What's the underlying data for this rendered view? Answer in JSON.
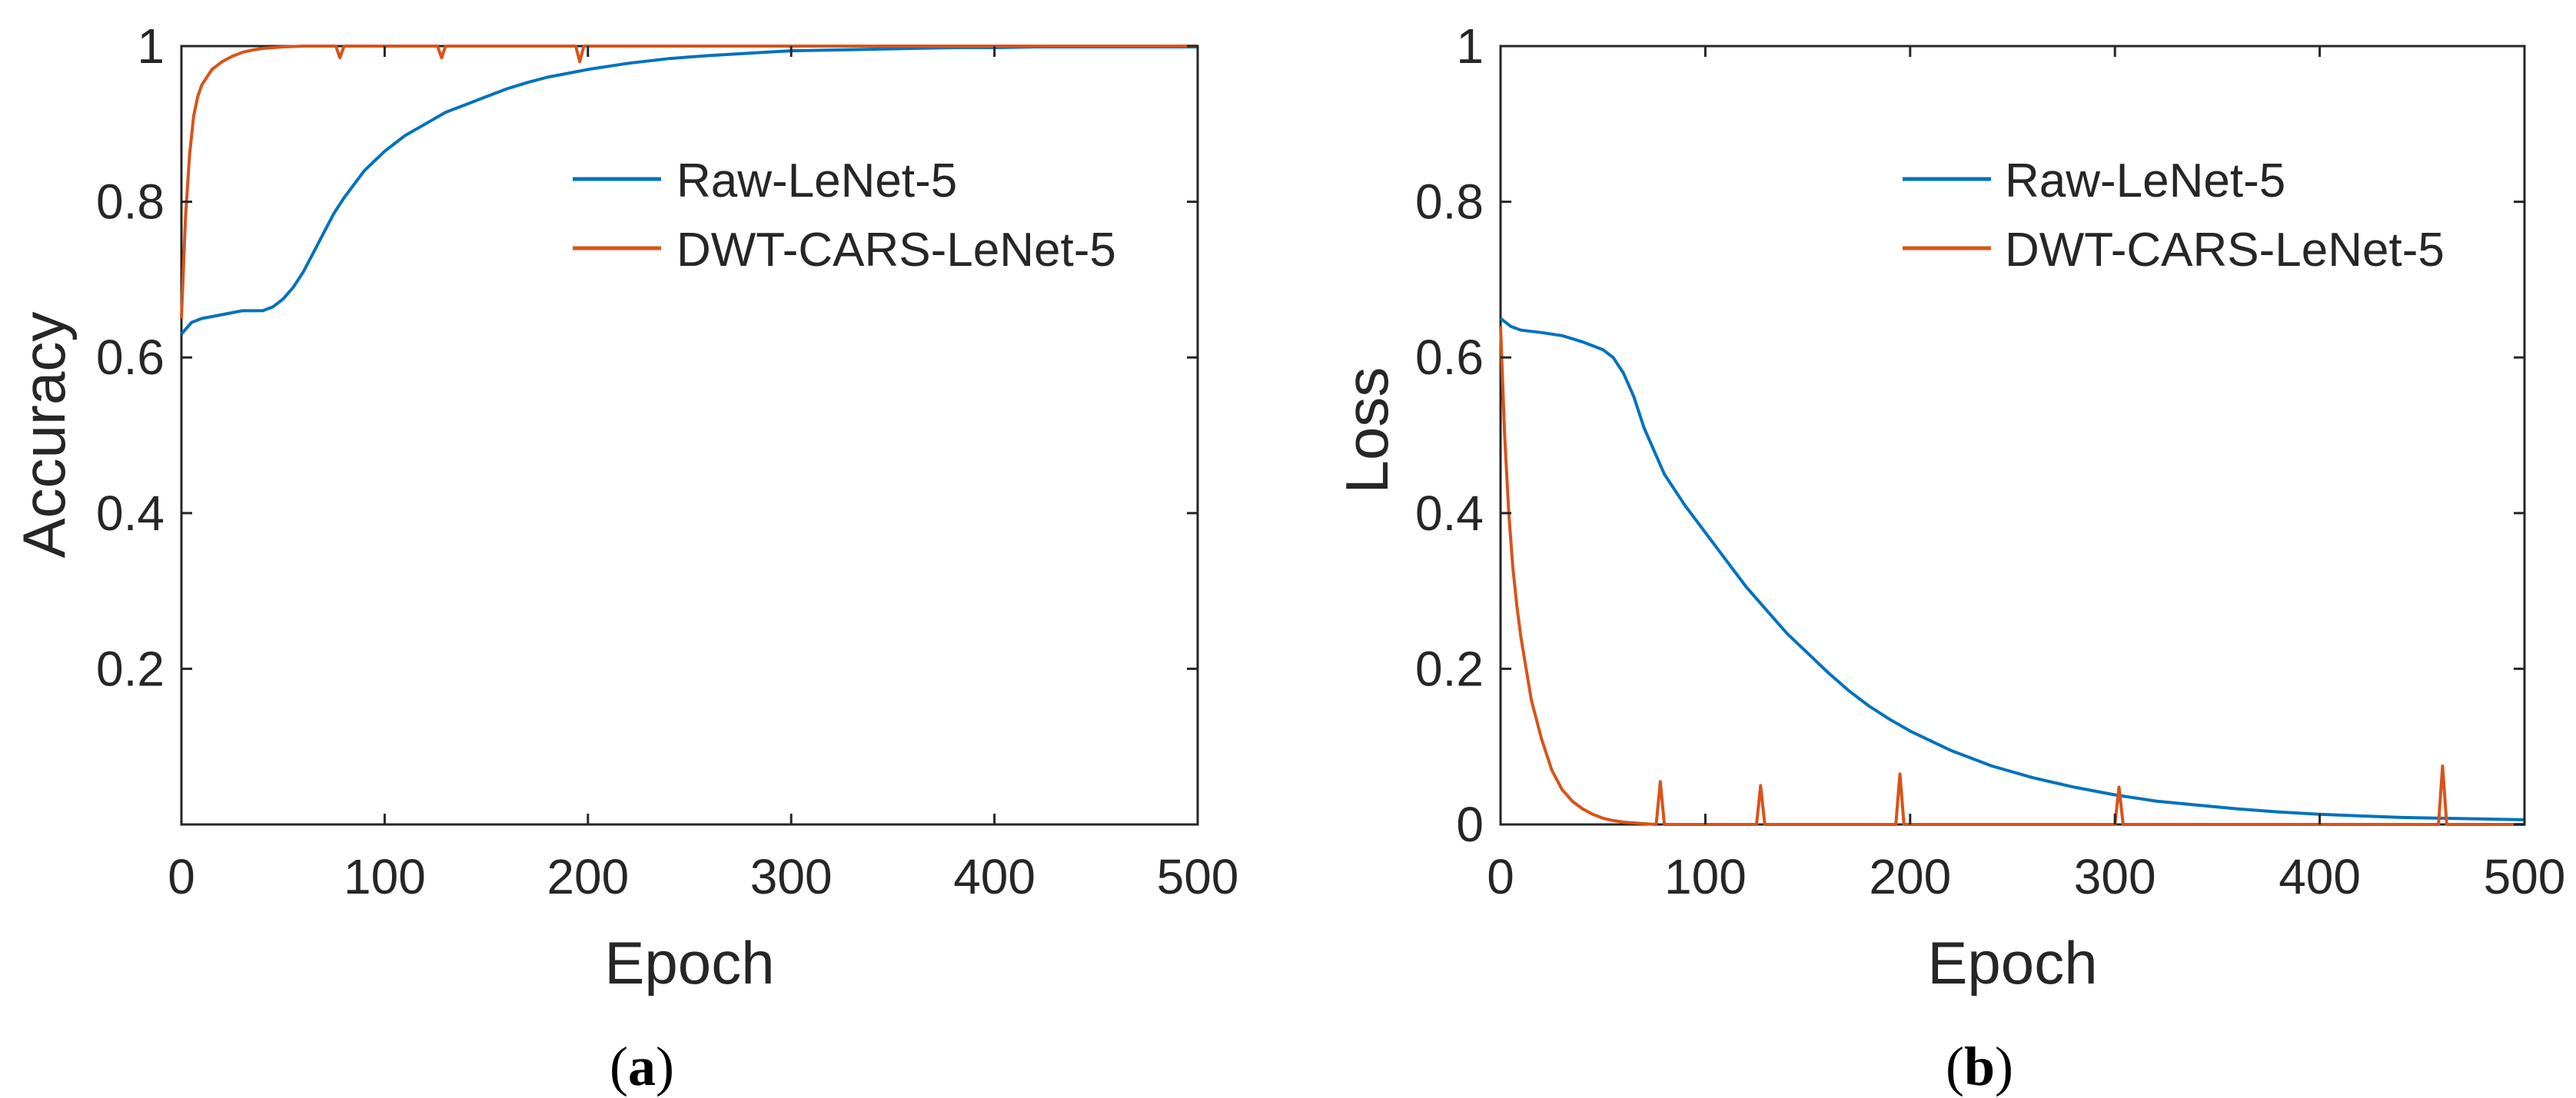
{
  "figure": {
    "panels": [
      {
        "label": "a"
      },
      {
        "label": "b"
      }
    ]
  },
  "colors": {
    "raw": "#0072BD",
    "dwt": "#D95319",
    "axis": "#262626"
  },
  "chart_data": [
    {
      "type": "line",
      "title": "",
      "xlabel": "Epoch",
      "ylabel": "Accuracy",
      "xlim": [
        0,
        500
      ],
      "ylim": [
        0,
        1
      ],
      "xticks": [
        0,
        100,
        200,
        300,
        400,
        500
      ],
      "yticks": [
        0.2,
        0.4,
        0.6,
        0.8,
        1
      ],
      "ytick_labels": [
        "0.2",
        "0.4",
        "0.6",
        "0.8",
        "1"
      ],
      "grid": false,
      "legend": "upper-right",
      "series": [
        {
          "name": "Raw-LeNet-5",
          "color": "#0072BD",
          "x": [
            0,
            5,
            10,
            20,
            30,
            40,
            45,
            50,
            55,
            60,
            65,
            70,
            75,
            80,
            90,
            100,
            110,
            120,
            130,
            140,
            150,
            160,
            170,
            180,
            190,
            200,
            220,
            240,
            260,
            280,
            300,
            320,
            340,
            360,
            380,
            400,
            420,
            440,
            460,
            480,
            500
          ],
          "y": [
            0.63,
            0.645,
            0.65,
            0.655,
            0.66,
            0.66,
            0.665,
            0.675,
            0.69,
            0.71,
            0.735,
            0.76,
            0.785,
            0.805,
            0.84,
            0.865,
            0.885,
            0.9,
            0.915,
            0.925,
            0.935,
            0.945,
            0.953,
            0.96,
            0.965,
            0.97,
            0.978,
            0.984,
            0.988,
            0.991,
            0.994,
            0.995,
            0.996,
            0.997,
            0.998,
            0.998,
            0.999,
            0.999,
            0.999,
            0.999,
            0.999
          ]
        },
        {
          "name": "DWT-CARS-LeNet-5",
          "color": "#D95319",
          "x": [
            0,
            2,
            4,
            6,
            8,
            10,
            15,
            20,
            25,
            30,
            35,
            40,
            50,
            60,
            76,
            78,
            80,
            126,
            128,
            130,
            194,
            196,
            198,
            250,
            300,
            350,
            400,
            450,
            500
          ],
          "y": [
            0.65,
            0.78,
            0.86,
            0.91,
            0.935,
            0.95,
            0.97,
            0.98,
            0.987,
            0.992,
            0.995,
            0.997,
            0.999,
            1.0,
            1.0,
            0.985,
            1.0,
            1.0,
            0.985,
            1.0,
            1.0,
            0.98,
            1.0,
            1.0,
            1.0,
            1.0,
            1.0,
            1.0,
            1.0
          ]
        }
      ]
    },
    {
      "type": "line",
      "title": "",
      "xlabel": "Epoch",
      "ylabel": "Loss",
      "xlim": [
        0,
        500
      ],
      "ylim": [
        0,
        1
      ],
      "xticks": [
        0,
        100,
        200,
        300,
        400,
        500
      ],
      "yticks": [
        0,
        0.2,
        0.4,
        0.6,
        0.8,
        1
      ],
      "ytick_labels": [
        "0",
        "0.2",
        "0.4",
        "0.6",
        "0.8",
        "1"
      ],
      "grid": false,
      "legend": "upper-right",
      "series": [
        {
          "name": "Raw-LeNet-5",
          "color": "#0072BD",
          "x": [
            0,
            5,
            10,
            20,
            30,
            40,
            50,
            55,
            60,
            65,
            70,
            75,
            80,
            90,
            100,
            110,
            120,
            130,
            140,
            150,
            160,
            170,
            180,
            190,
            200,
            220,
            240,
            260,
            280,
            300,
            320,
            340,
            360,
            380,
            400,
            420,
            440,
            460,
            480,
            500
          ],
          "y": [
            0.65,
            0.64,
            0.635,
            0.632,
            0.628,
            0.62,
            0.61,
            0.6,
            0.58,
            0.55,
            0.51,
            0.48,
            0.45,
            0.41,
            0.375,
            0.34,
            0.305,
            0.275,
            0.245,
            0.22,
            0.195,
            0.172,
            0.152,
            0.135,
            0.12,
            0.095,
            0.075,
            0.06,
            0.048,
            0.038,
            0.03,
            0.025,
            0.02,
            0.016,
            0.013,
            0.011,
            0.009,
            0.008,
            0.007,
            0.006
          ]
        },
        {
          "name": "DWT-CARS-LeNet-5",
          "color": "#D95319",
          "x": [
            0,
            2,
            4,
            6,
            8,
            10,
            15,
            20,
            25,
            30,
            35,
            40,
            45,
            50,
            55,
            60,
            65,
            70,
            76,
            78,
            80,
            125,
            127,
            129,
            193,
            195,
            197,
            250,
            300,
            302,
            304,
            350,
            400,
            458,
            460,
            462,
            500
          ],
          "y": [
            0.64,
            0.5,
            0.4,
            0.33,
            0.28,
            0.24,
            0.16,
            0.11,
            0.07,
            0.045,
            0.03,
            0.02,
            0.013,
            0.008,
            0.005,
            0.003,
            0.002,
            0.001,
            0.0,
            0.055,
            0.0,
            0.0,
            0.05,
            0.0,
            0.0,
            0.065,
            0.0,
            0.0,
            0.0,
            0.048,
            0.0,
            0.0,
            0.0,
            0.0,
            0.075,
            0.0,
            0.0
          ]
        }
      ]
    }
  ]
}
